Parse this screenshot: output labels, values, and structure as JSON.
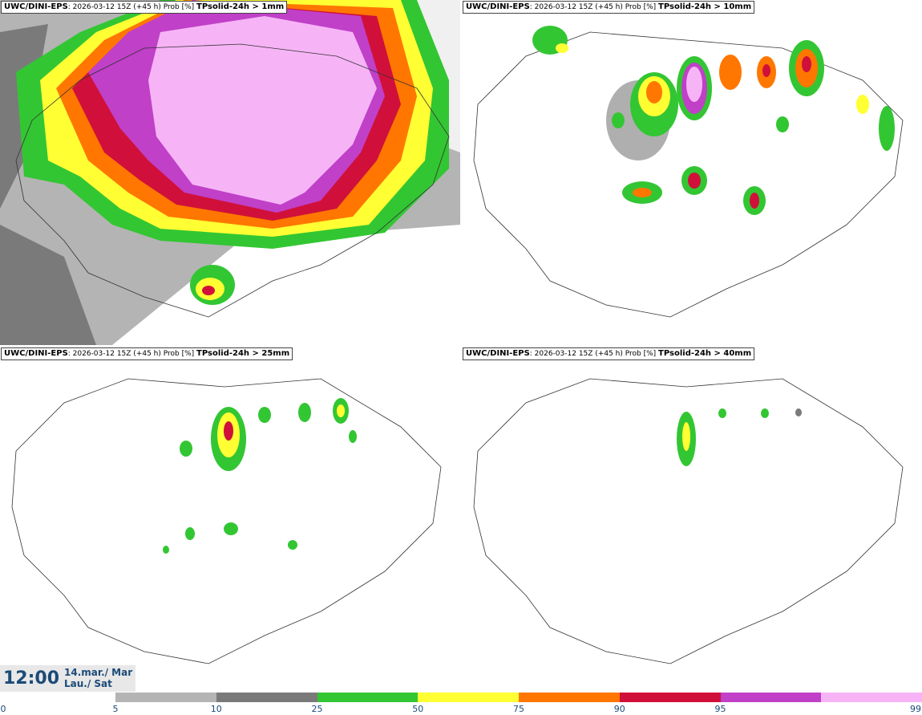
{
  "panels": [
    {
      "model": "UWC/DINI-EPS",
      "info": ": 2026-03-12 15Z (+45 h) Prob [%]",
      "variable": "TPsolid-24h > 1mm"
    },
    {
      "model": "UWC/DINI-EPS",
      "info": ": 2026-03-12 15Z (+45 h) Prob [%]",
      "variable": "TPsolid-24h > 10mm"
    },
    {
      "model": "UWC/DINI-EPS",
      "info": ": 2026-03-12 15Z (+45 h) Prob [%]",
      "variable": "TPsolid-24h > 25mm"
    },
    {
      "model": "UWC/DINI-EPS",
      "info": ": 2026-03-12 15Z (+45 h) Prob [%]",
      "variable": "TPsolid-24h > 40mm"
    }
  ],
  "valid_time": {
    "time": "12:00",
    "date_line1": "14.mar./ Mar",
    "date_line2": "Lau./ Sat"
  },
  "colorbar": {
    "ticks": [
      "0",
      "5",
      "10",
      "25",
      "50",
      "75",
      "90",
      "95",
      "99"
    ],
    "colors": [
      "#b4b4b4",
      "#7a7a7a",
      "#33c633",
      "#ffff33",
      "#ff7700",
      "#d0103a",
      "#c040c8",
      "#f6b4f6"
    ]
  },
  "map_colors": {
    "p5": "#b4b4b4",
    "p10": "#7a7a7a",
    "p25": "#33c633",
    "p50": "#ffff33",
    "p75": "#ff7700",
    "p90": "#d0103a",
    "p95": "#c040c8",
    "p99": "#f6b4f6"
  }
}
